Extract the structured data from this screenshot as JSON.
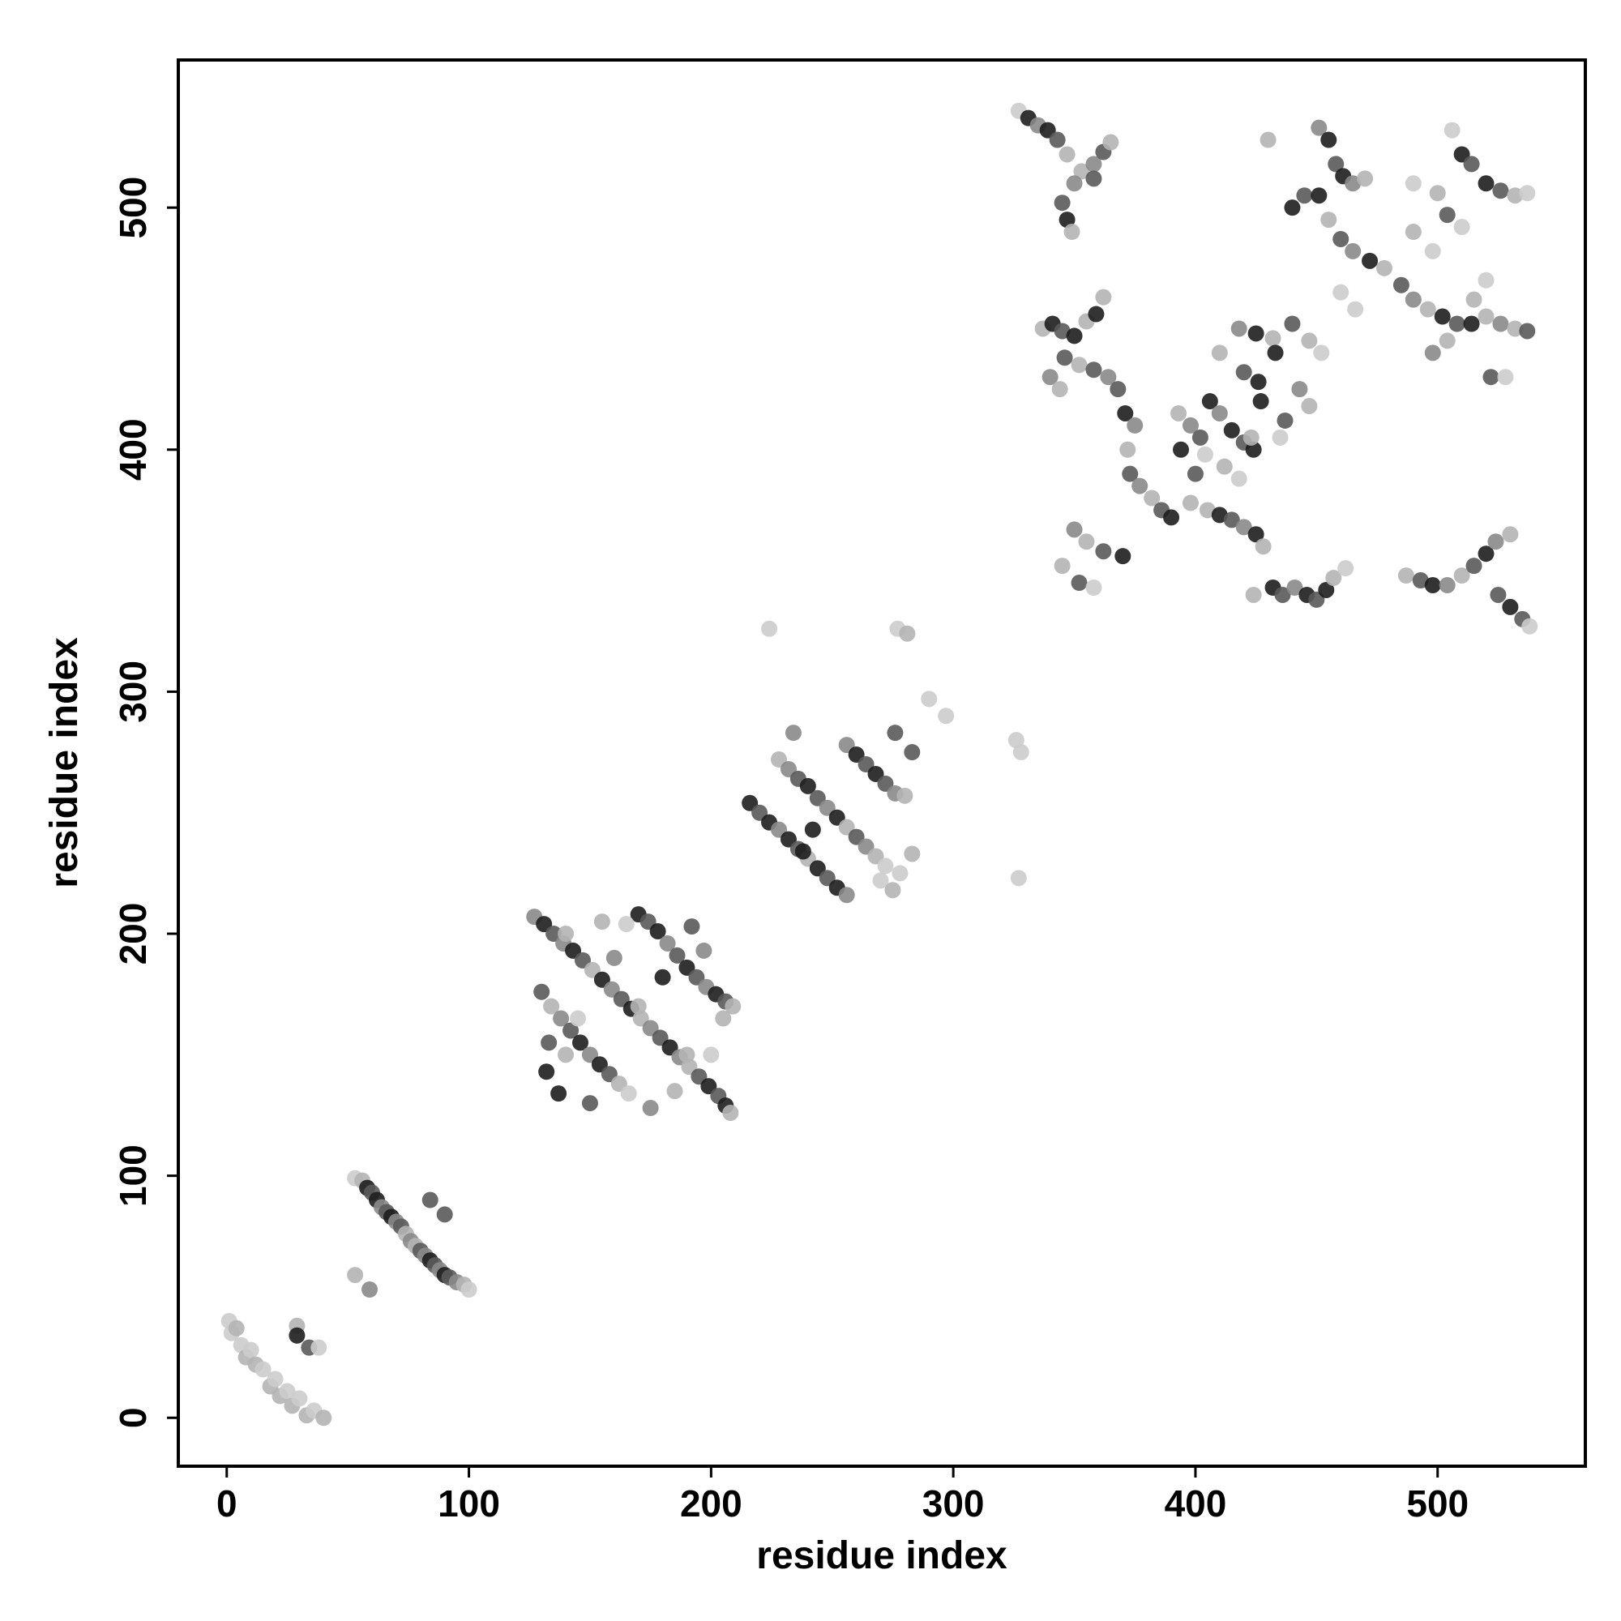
{
  "chart_data": {
    "type": "scatter",
    "x_label": "residue index",
    "y_label": "residue index",
    "xlim": [
      -20,
      561
    ],
    "ylim": [
      -20,
      561
    ],
    "xticks": [
      0,
      100,
      200,
      300,
      400,
      500
    ],
    "yticks": [
      0,
      100,
      200,
      300,
      400,
      500
    ],
    "grid": false,
    "series": [
      {
        "x": [
          1,
          2,
          4,
          6,
          8,
          10,
          12,
          15,
          18,
          20,
          22,
          25,
          27,
          30,
          33,
          36,
          40,
          29,
          29,
          34,
          38,
          53,
          56,
          58,
          60,
          62,
          64,
          66,
          68,
          70,
          72,
          74,
          76,
          78,
          80,
          82,
          84,
          86,
          88,
          90,
          92,
          95,
          98,
          100,
          53,
          59,
          84,
          90,
          127,
          131,
          135,
          139,
          143,
          147,
          151,
          155,
          159,
          163,
          167,
          171,
          175,
          179,
          183,
          187,
          191,
          195,
          199,
          203,
          206,
          208,
          130,
          134,
          138,
          142,
          146,
          150,
          154,
          158,
          162,
          166,
          170,
          174,
          178,
          182,
          186,
          190,
          194,
          198,
          202,
          206,
          209,
          132,
          137,
          140,
          155,
          165,
          192,
          197,
          133,
          150,
          175,
          185,
          160,
          180,
          170,
          145,
          200,
          190,
          205,
          140,
          216,
          220,
          224,
          228,
          232,
          236,
          240,
          244,
          248,
          252,
          256,
          256,
          260,
          264,
          268,
          272,
          276,
          280,
          228,
          232,
          236,
          240,
          244,
          248,
          252,
          256,
          260,
          264,
          268,
          272,
          234,
          276,
          283,
          242,
          238,
          270,
          278,
          275,
          283,
          224,
          277,
          281,
          290,
          297,
          326,
          328,
          327,
          327,
          331,
          335,
          339,
          343,
          347,
          353,
          358,
          362,
          365,
          345,
          347,
          349,
          350,
          358,
          337,
          341,
          345,
          350,
          355,
          359,
          362,
          340,
          344,
          346,
          352,
          358,
          364,
          368,
          371,
          375,
          372,
          373,
          377,
          382,
          386,
          390,
          398,
          393,
          398,
          402,
          406,
          410,
          415,
          420,
          424,
          404,
          412,
          418,
          400,
          394,
          410,
          405,
          410,
          415,
          420,
          425,
          428,
          432,
          436,
          441,
          446,
          450,
          454,
          457,
          462,
          424,
          350,
          355,
          362,
          370,
          345,
          352,
          358,
          418,
          425,
          432,
          440,
          447,
          452,
          443,
          447,
          437,
          427,
          420,
          426,
          433,
          435,
          423,
          430,
          451,
          455,
          458,
          461,
          465,
          470,
          440,
          445,
          451,
          455,
          460,
          465,
          472,
          478,
          485,
          490,
          496,
          502,
          508,
          514,
          520,
          526,
          532,
          537,
          460,
          466,
          490,
          500,
          504,
          510,
          506,
          510,
          514,
          520,
          526,
          532,
          537,
          498,
          504,
          515,
          520,
          522,
          528,
          498,
          490,
          487,
          493,
          498,
          504,
          510,
          515,
          520,
          524,
          530,
          525,
          530,
          535,
          538
        ],
        "values": [
          40,
          35,
          37,
          30,
          25,
          28,
          22,
          20,
          13,
          16,
          9,
          11,
          5,
          8,
          1,
          3,
          0,
          38,
          34,
          29,
          29,
          99,
          98,
          95,
          93,
          90,
          87,
          85,
          83,
          81,
          79,
          76,
          73,
          71,
          69,
          67,
          65,
          63,
          61,
          59,
          58,
          56,
          55,
          53,
          59,
          53,
          90,
          84,
          207,
          204,
          200,
          196,
          193,
          189,
          185,
          181,
          177,
          173,
          169,
          165,
          161,
          157,
          153,
          149,
          145,
          141,
          137,
          133,
          129,
          126,
          176,
          170,
          165,
          160,
          155,
          150,
          146,
          142,
          138,
          134,
          208,
          205,
          201,
          196,
          191,
          186,
          182,
          178,
          175,
          172,
          170,
          143,
          134,
          200,
          205,
          204,
          203,
          193,
          155,
          130,
          128,
          135,
          190,
          182,
          170,
          165,
          150,
          150,
          165,
          150,
          254,
          250,
          246,
          243,
          239,
          235,
          231,
          227,
          223,
          219,
          216,
          278,
          274,
          270,
          266,
          262,
          258,
          257,
          272,
          268,
          264,
          261,
          256,
          252,
          248,
          244,
          240,
          236,
          232,
          228,
          283,
          283,
          275,
          243,
          234,
          222,
          225,
          218,
          233,
          326,
          326,
          324,
          297,
          290,
          280,
          275,
          223,
          540,
          537,
          534,
          532,
          528,
          522,
          515,
          518,
          523,
          527,
          502,
          495,
          490,
          510,
          512,
          450,
          452,
          449,
          447,
          453,
          456,
          463,
          430,
          425,
          438,
          435,
          433,
          430,
          425,
          415,
          410,
          400,
          390,
          385,
          380,
          375,
          372,
          378,
          415,
          410,
          405,
          420,
          415,
          408,
          403,
          400,
          398,
          393,
          388,
          390,
          400,
          440,
          375,
          373,
          371,
          368,
          365,
          360,
          343,
          340,
          343,
          340,
          338,
          342,
          347,
          351,
          340,
          367,
          362,
          358,
          356,
          352,
          345,
          343,
          450,
          448,
          446,
          452,
          445,
          440,
          425,
          418,
          412,
          420,
          432,
          428,
          440,
          405,
          405,
          528,
          533,
          528,
          518,
          513,
          510,
          512,
          500,
          505,
          505,
          495,
          487,
          482,
          478,
          475,
          468,
          462,
          458,
          455,
          452,
          452,
          455,
          452,
          450,
          449,
          465,
          458,
          510,
          506,
          497,
          492,
          532,
          522,
          518,
          510,
          507,
          505,
          506,
          440,
          445,
          462,
          470,
          430,
          430,
          482,
          490,
          348,
          346,
          344,
          344,
          348,
          352,
          357,
          362,
          365,
          340,
          335,
          330,
          327
        ],
        "colors": [
          "#cccccc",
          "#cccccc",
          "#b4b4b4",
          "#cccccc",
          "#b4b4b4",
          "#cccccc",
          "#b4b4b4",
          "#cccccc",
          "#b4b4b4",
          "#cccccc",
          "#b4b4b4",
          "#cccccc",
          "#b4b4b4",
          "#cccccc",
          "#b4b4b4",
          "#cccccc",
          "#b4b4b4",
          "#b4b4b4",
          "#1e1e1e",
          "#5a5a5a",
          "#cccccc",
          "#cccccc",
          "#b4b4b4",
          "#1e1e1e",
          "#5a5a5a",
          "#1e1e1e",
          "#8a8a8a",
          "#5a5a5a",
          "#1e1e1e",
          "#8a8a8a",
          "#5a5a5a",
          "#b4b4b4",
          "#8a8a8a",
          "#b4b4b4",
          "#5a5a5a",
          "#8a8a8a",
          "#1e1e1e",
          "#5a5a5a",
          "#8a8a8a",
          "#1e1e1e",
          "#5a5a5a",
          "#8a8a8a",
          "#b4b4b4",
          "#cccccc",
          "#b4b4b4",
          "#8a8a8a",
          "#5a5a5a",
          "#5a5a5a",
          "#8a8a8a",
          "#1e1e1e",
          "#5a5a5a",
          "#8a8a8a",
          "#1e1e1e",
          "#5a5a5a",
          "#b4b4b4",
          "#1e1e1e",
          "#8a8a8a",
          "#5a5a5a",
          "#1e1e1e",
          "#b4b4b4",
          "#8a8a8a",
          "#5a5a5a",
          "#1e1e1e",
          "#8a8a8a",
          "#b4b4b4",
          "#5a5a5a",
          "#1e1e1e",
          "#5a5a5a",
          "#1e1e1e",
          "#b4b4b4",
          "#5a5a5a",
          "#b4b4b4",
          "#8a8a8a",
          "#5a5a5a",
          "#1e1e1e",
          "#8a8a8a",
          "#1e1e1e",
          "#5a5a5a",
          "#b4b4b4",
          "#cccccc",
          "#1e1e1e",
          "#5a5a5a",
          "#1e1e1e",
          "#8a8a8a",
          "#5a5a5a",
          "#1e1e1e",
          "#5a5a5a",
          "#8a8a8a",
          "#1e1e1e",
          "#5a5a5a",
          "#b4b4b4",
          "#1e1e1e",
          "#1e1e1e",
          "#b4b4b4",
          "#b4b4b4",
          "#cccccc",
          "#5a5a5a",
          "#8a8a8a",
          "#5a5a5a",
          "#5a5a5a",
          "#8a8a8a",
          "#b4b4b4",
          "#8a8a8a",
          "#1e1e1e",
          "#b4b4b4",
          "#cccccc",
          "#cccccc",
          "#b4b4b4",
          "#b4b4b4",
          "#b4b4b4",
          "#1e1e1e",
          "#5a5a5a",
          "#1e1e1e",
          "#8a8a8a",
          "#1e1e1e",
          "#5a5a5a",
          "#b4b4b4",
          "#1e1e1e",
          "#5a5a5a",
          "#1e1e1e",
          "#8a8a8a",
          "#8a8a8a",
          "#1e1e1e",
          "#5a5a5a",
          "#1e1e1e",
          "#5a5a5a",
          "#8a8a8a",
          "#b4b4b4",
          "#b4b4b4",
          "#8a8a8a",
          "#5a5a5a",
          "#1e1e1e",
          "#5a5a5a",
          "#8a8a8a",
          "#1e1e1e",
          "#b4b4b4",
          "#5a5a5a",
          "#8a8a8a",
          "#b4b4b4",
          "#cccccc",
          "#8a8a8a",
          "#5a5a5a",
          "#5a5a5a",
          "#1e1e1e",
          "#1e1e1e",
          "#cccccc",
          "#cccccc",
          "#b4b4b4",
          "#b4b4b4",
          "#cccccc",
          "#cccccc",
          "#b4b4b4",
          "#cccccc",
          "#cccccc",
          "#cccccc",
          "#cccccc",
          "#cccccc",
          "#cccccc",
          "#1e1e1e",
          "#8a8a8a",
          "#1e1e1e",
          "#5a5a5a",
          "#b4b4b4",
          "#b4b4b4",
          "#8a8a8a",
          "#5a5a5a",
          "#b4b4b4",
          "#5a5a5a",
          "#1e1e1e",
          "#b4b4b4",
          "#8a8a8a",
          "#5a5a5a",
          "#b4b4b4",
          "#1e1e1e",
          "#5a5a5a",
          "#1e1e1e",
          "#b4b4b4",
          "#1e1e1e",
          "#b4b4b4",
          "#8a8a8a",
          "#b4b4b4",
          "#5a5a5a",
          "#b4b4b4",
          "#5a5a5a",
          "#8a8a8a",
          "#5a5a5a",
          "#1e1e1e",
          "#8a8a8a",
          "#b4b4b4",
          "#5a5a5a",
          "#8a8a8a",
          "#b4b4b4",
          "#5a5a5a",
          "#1e1e1e",
          "#b4b4b4",
          "#b4b4b4",
          "#8a8a8a",
          "#5a5a5a",
          "#1e1e1e",
          "#8a8a8a",
          "#1e1e1e",
          "#5a5a5a",
          "#1e1e1e",
          "#cccccc",
          "#b4b4b4",
          "#cccccc",
          "#5a5a5a",
          "#1e1e1e",
          "#b4b4b4",
          "#b4b4b4",
          "#1e1e1e",
          "#5a5a5a",
          "#8a8a8a",
          "#1e1e1e",
          "#b4b4b4",
          "#1e1e1e",
          "#5a5a5a",
          "#8a8a8a",
          "#1e1e1e",
          "#5a5a5a",
          "#1e1e1e",
          "#b4b4b4",
          "#cccccc",
          "#b4b4b4",
          "#8a8a8a",
          "#b4b4b4",
          "#5a5a5a",
          "#1e1e1e",
          "#b4b4b4",
          "#5a5a5a",
          "#cccccc",
          "#8a8a8a",
          "#1e1e1e",
          "#b4b4b4",
          "#5a5a5a",
          "#b4b4b4",
          "#cccccc",
          "#8a8a8a",
          "#b4b4b4",
          "#5a5a5a",
          "#1e1e1e",
          "#5a5a5a",
          "#1e1e1e",
          "#1e1e1e",
          "#cccccc",
          "#b4b4b4",
          "#b4b4b4",
          "#8a8a8a",
          "#1e1e1e",
          "#5a5a5a",
          "#1e1e1e",
          "#8a8a8a",
          "#b4b4b4",
          "#1e1e1e",
          "#5a5a5a",
          "#1e1e1e",
          "#b4b4b4",
          "#5a5a5a",
          "#8a8a8a",
          "#1e1e1e",
          "#b4b4b4",
          "#5a5a5a",
          "#8a8a8a",
          "#b4b4b4",
          "#1e1e1e",
          "#5a5a5a",
          "#1e1e1e",
          "#b4b4b4",
          "#8a8a8a",
          "#b4b4b4",
          "#5a5a5a",
          "#cccccc",
          "#cccccc",
          "#cccccc",
          "#b4b4b4",
          "#5a5a5a",
          "#cccccc",
          "#cccccc",
          "#1e1e1e",
          "#5a5a5a",
          "#1e1e1e",
          "#5a5a5a",
          "#b4b4b4",
          "#cccccc",
          "#8a8a8a",
          "#b4b4b4",
          "#b4b4b4",
          "#cccccc",
          "#5a5a5a",
          "#cccccc",
          "#cccccc",
          "#b4b4b4",
          "#b4b4b4",
          "#5a5a5a",
          "#1e1e1e",
          "#8a8a8a",
          "#b4b4b4",
          "#5a5a5a",
          "#1e1e1e",
          "#8a8a8a",
          "#b4b4b4",
          "#5a5a5a",
          "#1e1e1e",
          "#5a5a5a",
          "#cccccc"
        ]
      }
    ]
  }
}
